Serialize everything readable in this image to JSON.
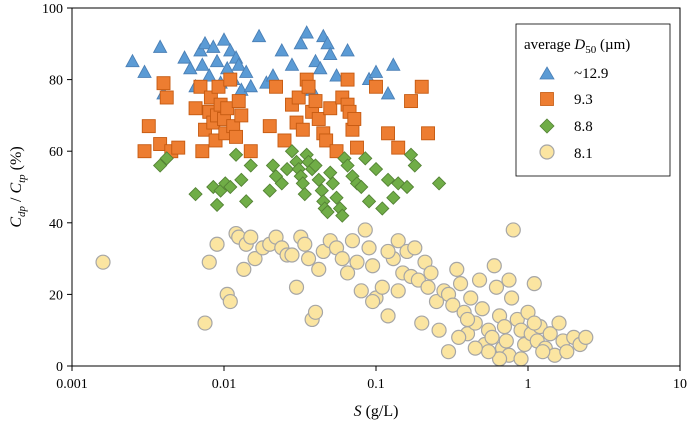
{
  "chart_data": {
    "type": "scatter",
    "title": "",
    "xlabel": {
      "main": "S",
      "units": " (g/L)"
    },
    "ylabel": {
      "num": "C",
      "num_sub": "dp",
      "sep": " / ",
      "den": "C",
      "den_sub": "tp",
      "units": " (%)"
    },
    "x_scale": "log",
    "xlim": [
      0.001,
      10
    ],
    "ylim": [
      0,
      100
    ],
    "x_ticks": [
      0.001,
      0.01,
      0.1,
      1,
      10
    ],
    "x_tick_labels": [
      "0.001",
      "0.01",
      "0.1",
      "1",
      "10"
    ],
    "y_ticks": [
      0,
      20,
      40,
      60,
      80,
      100
    ],
    "y_tick_labels": [
      "0",
      "20",
      "40",
      "60",
      "80",
      "100"
    ],
    "grid": false,
    "legend": {
      "title_main": "average ",
      "title_var": "D",
      "title_sub": "50",
      "title_units": " (µm)",
      "placement": "top-right"
    },
    "series": [
      {
        "name": "~12.9",
        "marker": "triangle",
        "color": "#5b9bd5",
        "edge": "#4a7fb5",
        "points": [
          [
            0.0025,
            85
          ],
          [
            0.003,
            82
          ],
          [
            0.0038,
            89
          ],
          [
            0.004,
            76
          ],
          [
            0.0055,
            86
          ],
          [
            0.006,
            83
          ],
          [
            0.0065,
            78
          ],
          [
            0.007,
            88
          ],
          [
            0.0072,
            84
          ],
          [
            0.0075,
            90
          ],
          [
            0.008,
            81
          ],
          [
            0.0085,
            89
          ],
          [
            0.009,
            85
          ],
          [
            0.0095,
            79
          ],
          [
            0.01,
            91
          ],
          [
            0.0105,
            83
          ],
          [
            0.011,
            88
          ],
          [
            0.0115,
            80
          ],
          [
            0.012,
            86
          ],
          [
            0.0125,
            84
          ],
          [
            0.013,
            77
          ],
          [
            0.014,
            82
          ],
          [
            0.015,
            78
          ],
          [
            0.017,
            92
          ],
          [
            0.019,
            79
          ],
          [
            0.021,
            81
          ],
          [
            0.024,
            88
          ],
          [
            0.028,
            84
          ],
          [
            0.032,
            90
          ],
          [
            0.035,
            93
          ],
          [
            0.038,
            77
          ],
          [
            0.04,
            85
          ],
          [
            0.043,
            83
          ],
          [
            0.045,
            92
          ],
          [
            0.048,
            90
          ],
          [
            0.05,
            87
          ],
          [
            0.055,
            81
          ],
          [
            0.065,
            88
          ],
          [
            0.09,
            80
          ],
          [
            0.1,
            82
          ],
          [
            0.12,
            76
          ],
          [
            0.13,
            84
          ]
        ]
      },
      {
        "name": "9.3",
        "marker": "square",
        "color": "#ed7d31",
        "edge": "#c55a11",
        "points": [
          [
            0.003,
            60
          ],
          [
            0.0032,
            67
          ],
          [
            0.0038,
            62
          ],
          [
            0.004,
            79
          ],
          [
            0.0042,
            75
          ],
          [
            0.0045,
            60
          ],
          [
            0.005,
            61
          ],
          [
            0.0065,
            72
          ],
          [
            0.007,
            78
          ],
          [
            0.0072,
            60
          ],
          [
            0.0075,
            66
          ],
          [
            0.008,
            71
          ],
          [
            0.0082,
            75
          ],
          [
            0.0085,
            68
          ],
          [
            0.0088,
            63
          ],
          [
            0.009,
            70
          ],
          [
            0.0092,
            78
          ],
          [
            0.0095,
            73
          ],
          [
            0.01,
            69
          ],
          [
            0.0102,
            65
          ],
          [
            0.0105,
            72
          ],
          [
            0.011,
            80
          ],
          [
            0.0115,
            67
          ],
          [
            0.012,
            64
          ],
          [
            0.0125,
            74
          ],
          [
            0.013,
            70
          ],
          [
            0.015,
            60
          ],
          [
            0.02,
            67
          ],
          [
            0.022,
            78
          ],
          [
            0.025,
            63
          ],
          [
            0.028,
            73
          ],
          [
            0.03,
            68
          ],
          [
            0.031,
            75
          ],
          [
            0.033,
            66
          ],
          [
            0.035,
            80
          ],
          [
            0.036,
            78
          ],
          [
            0.038,
            71
          ],
          [
            0.04,
            74
          ],
          [
            0.042,
            69
          ],
          [
            0.045,
            65
          ],
          [
            0.047,
            63
          ],
          [
            0.05,
            72
          ],
          [
            0.055,
            60
          ],
          [
            0.06,
            75
          ],
          [
            0.065,
            73
          ],
          [
            0.067,
            71
          ],
          [
            0.07,
            66
          ],
          [
            0.072,
            69
          ],
          [
            0.075,
            61
          ],
          [
            0.065,
            80
          ],
          [
            0.1,
            78
          ],
          [
            0.12,
            65
          ],
          [
            0.14,
            61
          ],
          [
            0.17,
            74
          ],
          [
            0.2,
            78
          ],
          [
            0.22,
            65
          ]
        ]
      },
      {
        "name": "8.8",
        "marker": "diamond",
        "color": "#70ad47",
        "edge": "#548235",
        "points": [
          [
            0.0038,
            56
          ],
          [
            0.0042,
            58
          ],
          [
            0.0065,
            48
          ],
          [
            0.0085,
            50
          ],
          [
            0.009,
            45
          ],
          [
            0.0095,
            49
          ],
          [
            0.0102,
            51
          ],
          [
            0.011,
            50
          ],
          [
            0.012,
            59
          ],
          [
            0.013,
            52
          ],
          [
            0.014,
            46
          ],
          [
            0.015,
            56
          ],
          [
            0.02,
            49
          ],
          [
            0.021,
            56
          ],
          [
            0.022,
            53
          ],
          [
            0.024,
            51
          ],
          [
            0.026,
            55
          ],
          [
            0.028,
            60
          ],
          [
            0.03,
            57
          ],
          [
            0.031,
            55
          ],
          [
            0.032,
            53
          ],
          [
            0.033,
            51
          ],
          [
            0.034,
            48
          ],
          [
            0.035,
            59
          ],
          [
            0.036,
            57
          ],
          [
            0.038,
            55
          ],
          [
            0.04,
            56
          ],
          [
            0.042,
            52
          ],
          [
            0.044,
            49
          ],
          [
            0.045,
            46
          ],
          [
            0.046,
            44
          ],
          [
            0.048,
            43
          ],
          [
            0.05,
            54
          ],
          [
            0.052,
            51
          ],
          [
            0.055,
            47
          ],
          [
            0.058,
            44
          ],
          [
            0.06,
            42
          ],
          [
            0.062,
            58
          ],
          [
            0.065,
            56
          ],
          [
            0.07,
            53
          ],
          [
            0.075,
            51
          ],
          [
            0.08,
            50
          ],
          [
            0.085,
            58
          ],
          [
            0.09,
            46
          ],
          [
            0.1,
            55
          ],
          [
            0.11,
            44
          ],
          [
            0.12,
            52
          ],
          [
            0.13,
            47
          ],
          [
            0.14,
            51
          ],
          [
            0.16,
            50
          ],
          [
            0.17,
            59
          ],
          [
            0.18,
            56
          ],
          [
            0.26,
            51
          ]
        ]
      },
      {
        "name": "8.1",
        "marker": "circle",
        "color": "#fbe5a1",
        "edge": "#a6a6a6",
        "points": [
          [
            0.0016,
            29
          ],
          [
            0.0075,
            12
          ],
          [
            0.008,
            29
          ],
          [
            0.009,
            34
          ],
          [
            0.0105,
            20
          ],
          [
            0.011,
            18
          ],
          [
            0.012,
            37
          ],
          [
            0.0125,
            36
          ],
          [
            0.0135,
            27
          ],
          [
            0.014,
            34
          ],
          [
            0.015,
            36
          ],
          [
            0.016,
            30
          ],
          [
            0.018,
            33
          ],
          [
            0.02,
            34
          ],
          [
            0.022,
            36
          ],
          [
            0.024,
            33
          ],
          [
            0.026,
            31
          ],
          [
            0.028,
            31
          ],
          [
            0.03,
            22
          ],
          [
            0.032,
            36
          ],
          [
            0.034,
            34
          ],
          [
            0.036,
            30
          ],
          [
            0.038,
            13
          ],
          [
            0.04,
            15
          ],
          [
            0.042,
            27
          ],
          [
            0.045,
            32
          ],
          [
            0.05,
            35
          ],
          [
            0.055,
            33
          ],
          [
            0.06,
            30
          ],
          [
            0.065,
            26
          ],
          [
            0.07,
            35
          ],
          [
            0.075,
            29
          ],
          [
            0.08,
            21
          ],
          [
            0.085,
            38
          ],
          [
            0.09,
            33
          ],
          [
            0.095,
            28
          ],
          [
            0.1,
            19
          ],
          [
            0.11,
            22
          ],
          [
            0.12,
            14
          ],
          [
            0.13,
            30
          ],
          [
            0.14,
            35
          ],
          [
            0.15,
            26
          ],
          [
            0.16,
            32
          ],
          [
            0.17,
            25
          ],
          [
            0.18,
            33
          ],
          [
            0.19,
            24
          ],
          [
            0.2,
            12
          ],
          [
            0.21,
            29
          ],
          [
            0.22,
            22
          ],
          [
            0.23,
            26
          ],
          [
            0.25,
            18
          ],
          [
            0.26,
            10
          ],
          [
            0.28,
            21
          ],
          [
            0.3,
            20
          ],
          [
            0.32,
            17
          ],
          [
            0.34,
            27
          ],
          [
            0.36,
            23
          ],
          [
            0.38,
            15
          ],
          [
            0.4,
            9
          ],
          [
            0.42,
            19
          ],
          [
            0.45,
            12
          ],
          [
            0.48,
            24
          ],
          [
            0.5,
            16
          ],
          [
            0.52,
            6
          ],
          [
            0.55,
            10
          ],
          [
            0.58,
            8
          ],
          [
            0.6,
            28
          ],
          [
            0.62,
            22
          ],
          [
            0.65,
            14
          ],
          [
            0.68,
            5
          ],
          [
            0.7,
            11
          ],
          [
            0.72,
            7
          ],
          [
            0.75,
            3
          ],
          [
            0.78,
            19
          ],
          [
            0.8,
            38
          ],
          [
            0.85,
            13
          ],
          [
            0.9,
            10
          ],
          [
            0.95,
            6
          ],
          [
            1.0,
            15
          ],
          [
            1.05,
            9
          ],
          [
            1.1,
            23
          ],
          [
            1.15,
            7
          ],
          [
            1.2,
            11
          ],
          [
            1.3,
            5
          ],
          [
            1.4,
            9
          ],
          [
            1.5,
            3
          ],
          [
            1.6,
            12
          ],
          [
            1.7,
            7
          ],
          [
            1.8,
            4
          ],
          [
            2.0,
            8
          ],
          [
            2.2,
            6
          ],
          [
            2.4,
            8
          ],
          [
            0.65,
            2
          ],
          [
            0.55,
            4
          ],
          [
            0.9,
            2
          ],
          [
            1.25,
            4
          ],
          [
            1.1,
            12
          ],
          [
            0.3,
            4
          ],
          [
            0.35,
            8
          ],
          [
            0.45,
            5
          ],
          [
            0.12,
            32
          ],
          [
            0.095,
            18
          ],
          [
            0.14,
            21
          ],
          [
            0.4,
            13
          ],
          [
            0.75,
            24
          ]
        ]
      }
    ]
  }
}
